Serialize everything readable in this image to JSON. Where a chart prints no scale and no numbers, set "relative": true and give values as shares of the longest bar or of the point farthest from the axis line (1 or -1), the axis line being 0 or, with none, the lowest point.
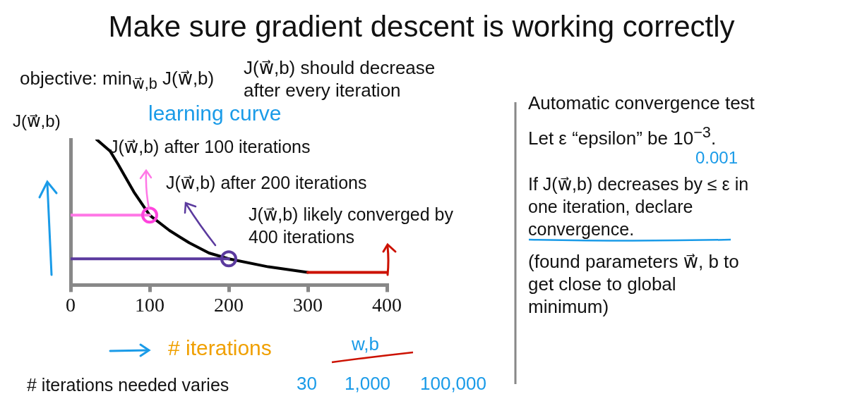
{
  "chart_data": {
    "type": "line",
    "title": "Make sure gradient descent is working correctly",
    "xlabel": "# iterations",
    "ylabel": "J(w⃗,b)",
    "relative": true,
    "xlim": [
      0,
      400
    ],
    "xticks": [
      0,
      100,
      200,
      300,
      400
    ],
    "grid": false,
    "legend": false,
    "series": [
      {
        "color": "#000000",
        "x": [
          33,
          50,
          60,
          80,
          100,
          125,
          150,
          175,
          200,
          250,
          300
        ],
        "values": [
          1,
          0.92,
          0.83,
          0.64,
          0.48,
          0.375,
          0.29,
          0.22,
          0.18,
          0.125,
          0.087
        ]
      },
      {
        "type": "line",
        "color": "#cc1100",
        "x": [
          300,
          400
        ],
        "values": [
          0.087,
          0.087
        ]
      },
      {
        "type": "line",
        "color": "#ff77e6",
        "x": [
          0,
          100
        ],
        "values": [
          0.48,
          0.48
        ]
      },
      {
        "type": "line",
        "color": "#5b3a9e",
        "x": [
          0,
          200
        ],
        "values": [
          0.18,
          0.18
        ]
      },
      {
        "type": "scatter",
        "color": "#ff44dd",
        "x": [
          100
        ],
        "values": [
          0.48
        ]
      },
      {
        "type": "scatter",
        "color": "#5b3a9e",
        "x": [
          200
        ],
        "values": [
          0.18
        ]
      }
    ],
    "annotations": [
      "objective: min$_{w⃗,b}$ J(w⃗,b)",
      "J(w⃗,b) should decrease after every iteration",
      "learning curve",
      "J(w⃗,b) after 100 iterations",
      "J(w⃗,b) after 200 iterations",
      "J(w⃗,b) likely converged by 400 iterations",
      "Automatic convergence test",
      "Let ε “epsilon” be 10$^{−3}$.",
      "0.001",
      "If J(w⃗,b) decreases by ≤ ε in one iteration, declare convergence.",
      "(found parameters w⃗, b to get close to global minimum)",
      "w,b",
      "# iterations needed varies",
      "30",
      "1,000",
      "100,000"
    ]
  }
}
